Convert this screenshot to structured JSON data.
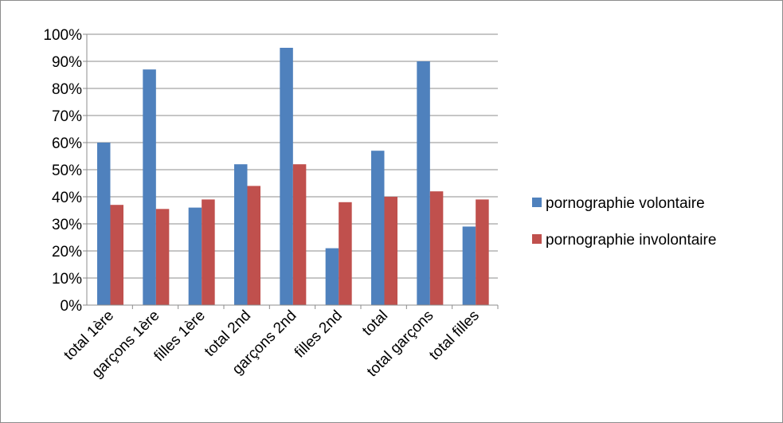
{
  "chart_data": {
    "type": "bar",
    "categories": [
      "total 1ère",
      "garçons 1ère",
      "filles 1ère",
      "total 2nd",
      "garçons 2nd",
      "filles 2nd",
      "total",
      "total garçons",
      "total filles"
    ],
    "series": [
      {
        "name": "pornographie volontaire",
        "color": "#4f81bd",
        "values": [
          60,
          87,
          36,
          52,
          95,
          21,
          57,
          90,
          29
        ]
      },
      {
        "name": "pornographie involontaire",
        "color": "#c0504d",
        "values": [
          37,
          35.5,
          39,
          44,
          52,
          38,
          40,
          42,
          39
        ]
      }
    ],
    "ylim": [
      0,
      100
    ],
    "ytick_step": 10,
    "ytick_labels": [
      "0%",
      "10%",
      "20%",
      "30%",
      "40%",
      "50%",
      "60%",
      "70%",
      "80%",
      "90%",
      "100%"
    ],
    "grid": true,
    "legend_position": "right",
    "xlabel": "",
    "ylabel": "",
    "title": ""
  }
}
